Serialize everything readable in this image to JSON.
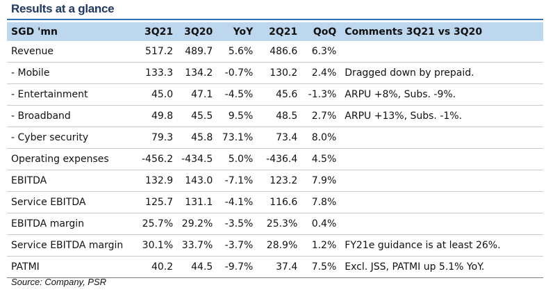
{
  "title": "Results at a glance",
  "source": "Source: Company, PSR",
  "table": {
    "headers": [
      "SGD 'mn",
      "3Q21",
      "3Q20",
      "YoY",
      "2Q21",
      "QoQ",
      "Comments 3Q21 vs 3Q20"
    ],
    "rows": [
      [
        "Revenue",
        "517.2",
        "489.7",
        "5.6%",
        "486.6",
        "6.3%",
        ""
      ],
      [
        " - Mobile",
        "133.3",
        "134.2",
        "-0.7%",
        "130.2",
        "2.4%",
        "Dragged down by prepaid."
      ],
      [
        " - Entertainment",
        "45.0",
        "47.1",
        "-4.5%",
        "45.6",
        "-1.3%",
        "ARPU +8%, Subs. -9%."
      ],
      [
        " - Broadband",
        "49.8",
        "45.5",
        "9.5%",
        "48.5",
        "2.7%",
        "ARPU +13%, Subs. -1%."
      ],
      [
        " - Cyber security",
        "79.3",
        "45.8",
        "73.1%",
        "73.4",
        "8.0%",
        ""
      ],
      [
        "Operating expenses",
        "-456.2",
        "-434.5",
        "5.0%",
        "-436.4",
        "4.5%",
        ""
      ],
      [
        "EBITDA",
        "132.9",
        "143.0",
        "-7.1%",
        "123.2",
        "7.9%",
        ""
      ],
      [
        "Service EBITDA",
        "125.7",
        "131.1",
        "-4.1%",
        "116.6",
        "7.8%",
        ""
      ],
      [
        "EBITDA margin",
        "25.7%",
        "29.2%",
        "-3.5%",
        "25.3%",
        "0.4%",
        ""
      ],
      [
        "Service EBITDA margin",
        "30.1%",
        "33.7%",
        "-3.7%",
        "28.9%",
        "1.2%",
        "FY21e guidance is at least 26%."
      ],
      [
        "PATMI",
        "40.2",
        "44.5",
        "-9.7%",
        "37.4",
        "7.5%",
        "Excl. JSS, PATMI up 5.1% YoY."
      ]
    ]
  },
  "colors": {
    "header_bg": "#bdd7ee",
    "title_color": "#1f3864",
    "rule_color": "#2e75b6"
  }
}
